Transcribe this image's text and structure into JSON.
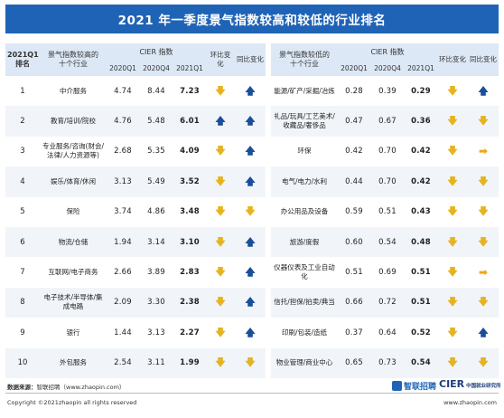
{
  "title": "2021 年一季度景气指数较高和较低的行业排名",
  "header": {
    "rank": "2021Q1\n排名",
    "high_group": "景气指数较高的\n十个行业",
    "low_group": "景气指数较低的\n十个行业",
    "cier_index": "CIER 指数",
    "col_2020q1": "2020Q1",
    "col_2020q4": "2020Q4",
    "col_2021q1": "2021Q1",
    "qoq": "环比变化",
    "yoy": "同比变化"
  },
  "rows": [
    {
      "rank": "1",
      "high": "中介服务",
      "h1": "4.74",
      "h2": "8.44",
      "h3": "7.23",
      "hq": "down",
      "hy": "up",
      "low": "能源/矿产/采掘/冶炼",
      "l1": "0.28",
      "l2": "0.39",
      "l3": "0.29",
      "lq": "down",
      "ly": "up"
    },
    {
      "rank": "2",
      "high": "教育/培训/院校",
      "h1": "4.76",
      "h2": "5.48",
      "h3": "6.01",
      "hq": "up",
      "hy": "up",
      "low": "礼品/玩具/工艺美术/收藏品/奢侈品",
      "l1": "0.47",
      "l2": "0.67",
      "l3": "0.36",
      "lq": "down",
      "ly": "down"
    },
    {
      "rank": "3",
      "high": "专业服务/咨询(财会/法律/人力资源等)",
      "h1": "2.68",
      "h2": "5.35",
      "h3": "4.09",
      "hq": "down",
      "hy": "up",
      "low": "环保",
      "l1": "0.42",
      "l2": "0.70",
      "l3": "0.42",
      "lq": "down",
      "ly": "right"
    },
    {
      "rank": "4",
      "high": "娱乐/体育/休闲",
      "h1": "3.13",
      "h2": "5.49",
      "h3": "3.52",
      "hq": "down",
      "hy": "up",
      "low": "电气/电力/水利",
      "l1": "0.44",
      "l2": "0.70",
      "l3": "0.42",
      "lq": "down",
      "ly": "down"
    },
    {
      "rank": "5",
      "high": "保险",
      "h1": "3.74",
      "h2": "4.86",
      "h3": "3.48",
      "hq": "down",
      "hy": "down",
      "low": "办公用品及设备",
      "l1": "0.59",
      "l2": "0.51",
      "l3": "0.43",
      "lq": "down",
      "ly": "down"
    },
    {
      "rank": "6",
      "high": "物流/仓储",
      "h1": "1.94",
      "h2": "3.14",
      "h3": "3.10",
      "hq": "down",
      "hy": "up",
      "low": "旅游/度假",
      "l1": "0.60",
      "l2": "0.54",
      "l3": "0.48",
      "lq": "down",
      "ly": "down"
    },
    {
      "rank": "7",
      "high": "互联网/电子商务",
      "h1": "2.66",
      "h2": "3.89",
      "h3": "2.83",
      "hq": "down",
      "hy": "up",
      "low": "仪器仪表及工业自动化",
      "l1": "0.51",
      "l2": "0.69",
      "l3": "0.51",
      "lq": "down",
      "ly": "right"
    },
    {
      "rank": "8",
      "high": "电子技术/半导体/集成电路",
      "h1": "2.09",
      "h2": "3.30",
      "h3": "2.38",
      "hq": "down",
      "hy": "up",
      "low": "信托/担保/拍卖/典当",
      "l1": "0.66",
      "l2": "0.72",
      "l3": "0.51",
      "lq": "down",
      "ly": "down"
    },
    {
      "rank": "9",
      "high": "银行",
      "h1": "1.44",
      "h2": "3.13",
      "h3": "2.27",
      "hq": "down",
      "hy": "up",
      "low": "印刷/包装/造纸",
      "l1": "0.37",
      "l2": "0.64",
      "l3": "0.52",
      "lq": "down",
      "ly": "up"
    },
    {
      "rank": "10",
      "high": "外包服务",
      "h1": "2.54",
      "h2": "3.11",
      "h3": "1.99",
      "hq": "down",
      "hy": "down",
      "low": "物业管理/商业中心",
      "l1": "0.65",
      "l2": "0.73",
      "l3": "0.54",
      "lq": "down",
      "ly": "down"
    }
  ],
  "arrows": {
    "up": "🡅",
    "down": "🡇",
    "right": "➡"
  },
  "colors": {
    "title_bg": "#1f63b6",
    "header_bg": "#dde8f6",
    "up": "#1a4e9a",
    "down": "#e6b321",
    "right": "#f2a51a"
  },
  "footer": {
    "source_label": "数据来源：",
    "source_text": "智联招聘（www.zhaopin.com）",
    "copyright": "Copyright ©2021zhaopin all rights reserved",
    "site": "www.zhaopin.com",
    "logo_zhilian": "智联招聘",
    "logo_cier": "CIER",
    "logo_cier_cn": "中国就业研究所"
  }
}
